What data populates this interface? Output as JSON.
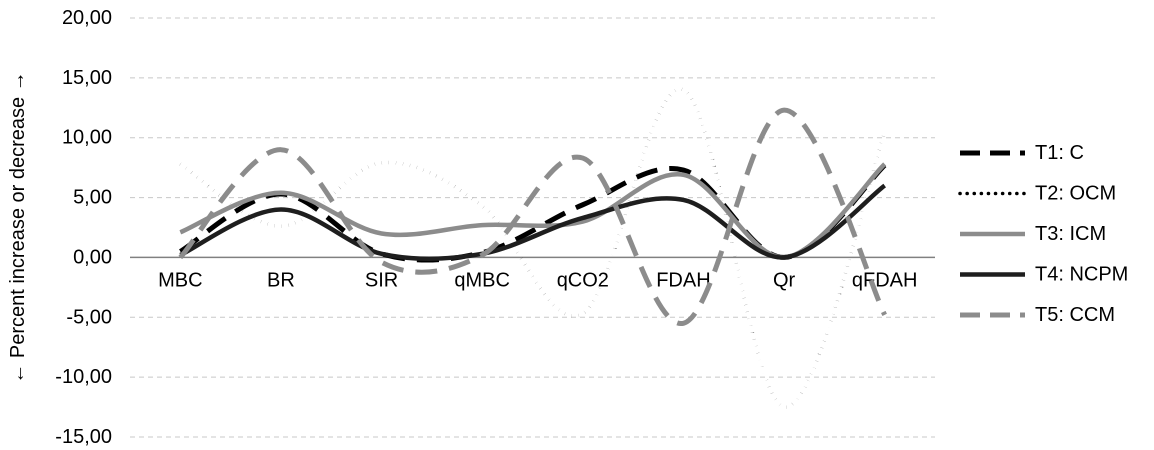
{
  "chart_data": {
    "type": "line",
    "smooth": true,
    "categories": [
      "MBC",
      "BR",
      "SIR",
      "qMBC",
      "qCO2",
      "FDAH",
      "Qr",
      "qFDAH"
    ],
    "ylabel": "← Percent increase or decrease →",
    "ylim": [
      -15,
      20
    ],
    "yticks": [
      -15,
      -10,
      -5,
      0,
      5,
      10,
      15,
      20
    ],
    "ytick_labels": [
      "-15,00",
      "-10,00",
      "-5,00",
      "0,00",
      "5,00",
      "10,00",
      "15,00",
      "20,00"
    ],
    "grid": true,
    "legend_position": "right",
    "series": [
      {
        "name": "T1: C",
        "values": [
          0.5,
          5.3,
          0.3,
          0.4,
          4.4,
          7.3,
          0.0,
          7.7
        ],
        "color": "#000000",
        "style": "long-dash"
      },
      {
        "name": "T2: OCM",
        "values": [
          7.8,
          2.6,
          7.9,
          4.3,
          -4.7,
          14.0,
          -12.5,
          10.4
        ],
        "color": "#000000",
        "style": "dotted"
      },
      {
        "name": "T3: ICM",
        "values": [
          2.1,
          5.4,
          2.0,
          2.7,
          3.0,
          6.9,
          0.0,
          7.8
        ],
        "color": "#8c8c8c",
        "style": "solid"
      },
      {
        "name": "T4: NCPM",
        "values": [
          0.2,
          4.0,
          0.3,
          0.3,
          3.3,
          4.8,
          0.0,
          6.0
        ],
        "color": "#1e1e1e",
        "style": "solid"
      },
      {
        "name": "T5: CCM",
        "values": [
          0.0,
          9.0,
          -0.4,
          0.2,
          8.3,
          -5.5,
          12.3,
          -4.8
        ],
        "color": "#8c8c8c",
        "style": "long-dash"
      }
    ]
  }
}
